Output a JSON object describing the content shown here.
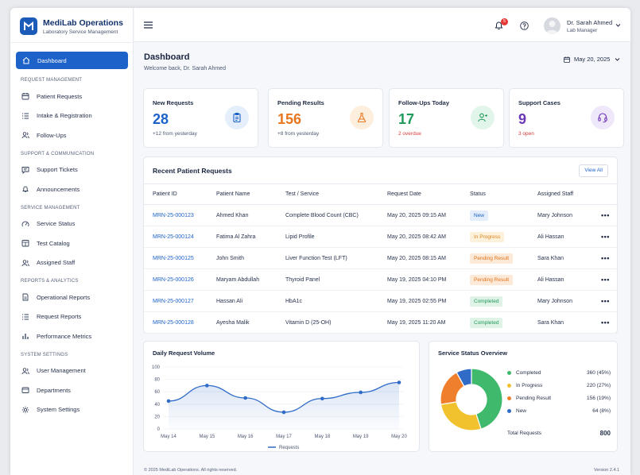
{
  "app": {
    "name": "MediLab Operations",
    "subtitle": "Laboratory Service Management"
  },
  "sidebar": {
    "active": "Dashboard",
    "sections": [
      {
        "title": "REQUEST MANAGEMENT",
        "items": [
          "Patient Requests",
          "Intake & Registration",
          "Follow-Ups"
        ]
      },
      {
        "title": "SUPPORT & COMMUNICATION",
        "items": [
          "Support Tickets",
          "Announcements"
        ]
      },
      {
        "title": "SERVICE MANAGEMENT",
        "items": [
          "Service Status",
          "Test Catalog",
          "Assigned Staff"
        ]
      },
      {
        "title": "REPORTS & ANALYTICS",
        "items": [
          "Operational Reports",
          "Request Reports",
          "Performance Metrics"
        ]
      },
      {
        "title": "SYSTEM SETTINGS",
        "items": [
          "User Management",
          "Departments",
          "System Settings"
        ]
      }
    ]
  },
  "topbar": {
    "notification_count": "5",
    "user_name": "Dr. Sarah Ahmed",
    "user_role": "Lab Manager"
  },
  "page": {
    "title": "Dashboard",
    "subtitle": "Welcome back, Dr. Sarah Ahmed",
    "date": "May 20, 2025"
  },
  "stats": [
    {
      "title": "New Requests",
      "value": "28",
      "note": "+12 from yesterday",
      "color": "#1d62c8",
      "note_color": "#4b5670",
      "icon_bg": "#e5eefb",
      "icon": "clipboard-icon"
    },
    {
      "title": "Pending Results",
      "value": "156",
      "note": "+8 from yesterday",
      "color": "#e8761f",
      "note_color": "#4b5670",
      "icon_bg": "#fdeede",
      "icon": "flask-icon"
    },
    {
      "title": "Follow-Ups Today",
      "value": "17",
      "note": "2 overdue",
      "color": "#1f9a5b",
      "note_color": "#d93a3a",
      "icon_bg": "#e2f5ea",
      "icon": "user-follow-icon"
    },
    {
      "title": "Support Cases",
      "value": "9",
      "note": "3 open",
      "color": "#6a35b8",
      "note_color": "#d93a3a",
      "icon_bg": "#efe7fa",
      "icon": "headset-icon"
    }
  ],
  "requests": {
    "title": "Recent Patient Requests",
    "view_all": "View All",
    "columns": [
      "Patient ID",
      "Patient Name",
      "Test / Service",
      "Request Date",
      "Status",
      "Assigned Staff"
    ],
    "rows": [
      {
        "id": "MRN-25-000123",
        "name": "Ahmed Khan",
        "test": "Complete Blood Count (CBC)",
        "date": "May 20, 2025 09:15 AM",
        "status": "New",
        "staff": "Mary Johnson"
      },
      {
        "id": "MRN-25-000124",
        "name": "Fatima Al Zahra",
        "test": "Lipid Profile",
        "date": "May 20, 2025 08:42 AM",
        "status": "In Progress",
        "staff": "Ali Hassan"
      },
      {
        "id": "MRN-25-000125",
        "name": "John Smith",
        "test": "Liver Function Test (LFT)",
        "date": "May 20, 2025 08:15 AM",
        "status": "Pending Result",
        "staff": "Sara Khan"
      },
      {
        "id": "MRN-25-000126",
        "name": "Maryam Abdullah",
        "test": "Thyroid Panel",
        "date": "May 19, 2025 04:10 PM",
        "status": "Pending Result",
        "staff": "Ali Hassan"
      },
      {
        "id": "MRN-25-000127",
        "name": "Hassan Ali",
        "test": "HbA1c",
        "date": "May 19, 2025 02:55 PM",
        "status": "Completed",
        "staff": "Mary Johnson"
      },
      {
        "id": "MRN-25-000128",
        "name": "Ayesha Malik",
        "test": "Vitamin D (25-OH)",
        "date": "May 19, 2025 11:20 AM",
        "status": "Completed",
        "staff": "Sara Khan"
      }
    ]
  },
  "status_colors": {
    "New": {
      "bg": "#e3edfb",
      "fg": "#1d62c8"
    },
    "In Progress": {
      "bg": "#fdf1dc",
      "fg": "#d9861a"
    },
    "Pending Result": {
      "bg": "#fde9d8",
      "fg": "#e0741b"
    },
    "Completed": {
      "bg": "#e0f3e7",
      "fg": "#1f9a5b"
    }
  },
  "chart_data": [
    {
      "type": "line",
      "title": "Daily Request Volume",
      "x": [
        "May 14",
        "May 15",
        "May 16",
        "May 17",
        "May 18",
        "May 19",
        "May 20"
      ],
      "series": [
        {
          "name": "Requests",
          "values": [
            45,
            70,
            50,
            27,
            49,
            59,
            75
          ]
        }
      ],
      "yticks": [
        "100",
        "80",
        "60",
        "40",
        "20",
        "0"
      ],
      "ylim": [
        0,
        100
      ],
      "color": "#2f6bc7"
    },
    {
      "type": "pie",
      "title": "Service Status Overview",
      "slices": [
        {
          "label": "Completed",
          "value": 360,
          "display": "360 (45%)",
          "color": "#3fb96b"
        },
        {
          "label": "In Progress",
          "value": 220,
          "display": "220 (27%)",
          "color": "#f2c12e"
        },
        {
          "label": "Pending Result",
          "value": 156,
          "display": "156 (19%)",
          "color": "#f07f2d"
        },
        {
          "label": "New",
          "value": 64,
          "display": "64 (8%)",
          "color": "#2f6bc7"
        }
      ],
      "total_label": "Total Requests",
      "total": "800"
    }
  ],
  "footer": {
    "copyright": "© 2025 MediLab Operations. All rights reserved.",
    "version": "Version 2.4.1"
  }
}
